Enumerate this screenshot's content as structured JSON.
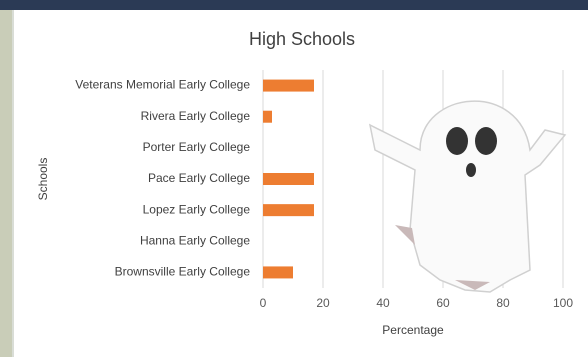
{
  "chart_data": {
    "type": "barh",
    "title": "High Schools",
    "categories": [
      "Veterans Memorial Early College",
      "Rivera Early College",
      "Porter Early College",
      "Pace Early College",
      "Lopez Early College",
      "Hanna Early College",
      "Brownsville Early College"
    ],
    "values": [
      17,
      3,
      0,
      17,
      17,
      0,
      10
    ],
    "color": "#ed7d31",
    "xlabel": "Percentage",
    "ylabel": "Schools",
    "xlim": [
      0,
      100
    ],
    "xticks": [
      0,
      20,
      40,
      60,
      80,
      100
    ],
    "grid": true
  }
}
